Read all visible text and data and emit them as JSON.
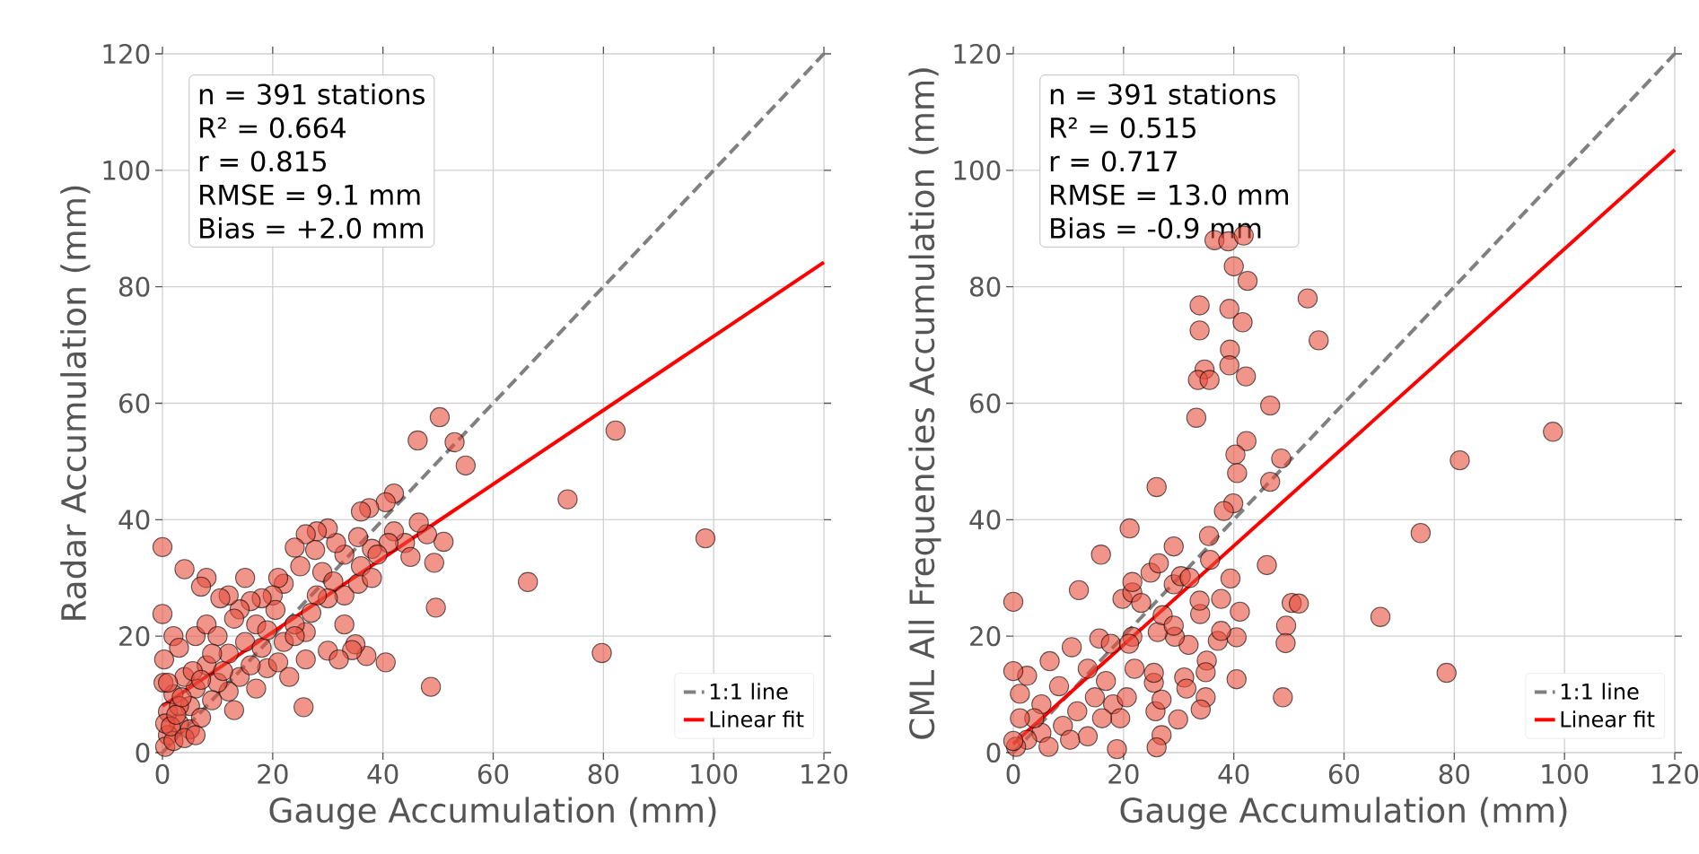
{
  "chart_data": [
    {
      "type": "scatter",
      "xlabel": "Gauge Accumulation (mm)",
      "ylabel": "Radar Accumulation (mm)",
      "xlim": [
        0,
        120
      ],
      "ylim": [
        0,
        120
      ],
      "xticks": [
        0,
        20,
        40,
        60,
        80,
        100,
        120
      ],
      "yticks": [
        0,
        20,
        40,
        60,
        80,
        100,
        120
      ],
      "grid": true,
      "legend": "bottom right",
      "annotations": [
        "n = 391 stations",
        "R² = 0.664",
        "r = 0.815",
        "RMSE = 9.1 mm",
        "Bias = +2.0 mm"
      ],
      "series": [
        {
          "color": "#e74c3c",
          "marker": "circle",
          "x": [
            98.5,
            79.7,
            82.2,
            73.5,
            66.3,
            48.7,
            55,
            53,
            50.3,
            46.3,
            49.6,
            51,
            49.3,
            48,
            46.5,
            40.5,
            37,
            35,
            34.4,
            25.6,
            26,
            30,
            32,
            0,
            0,
            42,
            40.5,
            37.5,
            36,
            44,
            45,
            42,
            41,
            38,
            35.5,
            33,
            31.5,
            30,
            28,
            26,
            27.7,
            24,
            25,
            29,
            31,
            33,
            35.5,
            36,
            30,
            28,
            26,
            24,
            22,
            21,
            20,
            20.5,
            18,
            16,
            14,
            12,
            10.5,
            8,
            7,
            4,
            2,
            3,
            6,
            8,
            10,
            12,
            15,
            17,
            18,
            19,
            21,
            22,
            24,
            23,
            14,
            12,
            13,
            10,
            8,
            6,
            5,
            4,
            3,
            2,
            1,
            1,
            0.5,
            2,
            3,
            5,
            7,
            9,
            11,
            16,
            17,
            19,
            15,
            13,
            9,
            0.3,
            0.2,
            27,
            33,
            38,
            39,
            0.5,
            1.5,
            2.5,
            4,
            6,
            3.5,
            1,
            5.5,
            7
          ],
          "values": [
            36.8,
            17.1,
            55.3,
            43.5,
            29.3,
            11.3,
            49.3,
            53.3,
            57.6,
            53.6,
            24.9,
            36.2,
            32.6,
            37.5,
            39.5,
            15.5,
            16.6,
            18.6,
            17.6,
            7.8,
            16,
            17.5,
            16,
            35.3,
            23.8,
            44.5,
            43,
            42,
            41.4,
            36,
            33.6,
            38,
            36,
            35,
            37,
            34,
            36,
            38.5,
            38,
            37.5,
            34.8,
            35.2,
            32,
            31,
            29.4,
            27,
            29,
            32,
            26.5,
            27,
            20.7,
            22,
            29,
            30,
            27,
            24.5,
            26.5,
            26,
            24.6,
            27,
            26.5,
            30,
            28.5,
            31.5,
            20,
            18,
            20,
            22,
            20,
            17,
            19,
            22,
            18,
            14.5,
            15.5,
            19,
            20,
            13,
            13,
            10.5,
            7.3,
            12,
            15,
            11,
            8,
            13,
            5,
            10,
            7,
            3,
            1,
            2,
            8,
            4,
            6,
            9,
            14,
            15,
            11,
            21,
            30,
            23,
            17,
            16,
            12,
            24,
            22,
            30,
            34,
            5,
            4.5,
            6.5,
            2.5,
            3,
            9.5,
            12,
            14,
            12.5
          ]
        },
        {
          "name": "1:1 line",
          "type": "line",
          "color": "#808080",
          "line_style": "dashed",
          "marker": "none",
          "x": [
            0,
            120
          ],
          "values": [
            0,
            120
          ]
        },
        {
          "name": "Linear fit",
          "type": "line",
          "color": "#ff0000",
          "line_style": "solid",
          "marker": "none",
          "x": [
            0,
            120
          ],
          "values": [
            8.0,
            84.2
          ]
        }
      ]
    },
    {
      "type": "scatter",
      "xlabel": "Gauge Accumulation (mm)",
      "ylabel": "CML All Frequencies Accumulation (mm)",
      "xlim": [
        0,
        120
      ],
      "ylim": [
        0,
        120
      ],
      "xticks": [
        0,
        20,
        40,
        60,
        80,
        100,
        120
      ],
      "yticks": [
        0,
        20,
        40,
        60,
        80,
        100,
        120
      ],
      "grid": true,
      "legend": "bottom right",
      "annotations": [
        "n = 391 stations",
        "R² = 0.515",
        "r = 0.717",
        "RMSE = 13.0 mm",
        "Bias = -0.9 mm"
      ],
      "series": [
        {
          "color": "#e74c3c",
          "marker": "circle",
          "x": [
            53.4,
            55.4,
            33.8,
            39.2,
            41.6,
            33.8,
            39.3,
            39.2,
            34.7,
            33.5,
            35.6,
            42.2,
            46.6,
            33.2,
            42.3,
            40.3,
            48.6,
            40.6,
            46.6,
            26.0,
            39.9,
            38.2,
            81.0,
            73.9,
            66.6,
            78.6,
            48.9,
            21.1,
            15.9,
            29.1,
            35.5,
            35.7,
            46.0,
            39.4,
            50.5,
            51.8,
            49.5,
            49.4,
            41.1,
            37.7,
            40.5,
            37.1,
            37.7,
            35.1,
            34.9,
            40.5,
            34.9,
            34.0,
            29.9,
            26.9,
            26.0,
            18.8,
            31.0,
            31.4,
            25.8,
            26.9,
            25.5,
            25.5,
            11.9,
            0,
            19.8,
            21.6,
            21.6,
            24.9,
            26.4,
            29.1,
            30.4,
            32.0,
            33.9,
            33.8,
            31.8,
            29.3,
            26.2,
            21.6,
            15.6,
            17.7,
            10.6,
            6.6,
            22.0,
            16.8,
            13.5,
            23.2,
            27.1,
            29.1,
            21.0,
            1.2,
            2.5,
            5.1,
            8.3,
            11.6,
            14.8,
            18.1,
            9.0,
            13.5,
            5.1,
            2.5,
            0.5,
            6.4,
            19.4,
            20.6,
            16.1,
            10.3,
            3.8,
            1.2,
            36.5,
            39,
            41.8,
            40,
            42.5,
            97.9,
            0,
            0
          ],
          "values": [
            78.0,
            70.8,
            76.8,
            76.2,
            73.9,
            72.5,
            69.2,
            66.5,
            65.8,
            64.0,
            64.0,
            64.6,
            59.6,
            57.5,
            53.5,
            51.2,
            50.5,
            48.0,
            46.5,
            45.6,
            42.8,
            41.5,
            50.2,
            37.7,
            23.3,
            13.7,
            9.5,
            38.5,
            34.0,
            35.4,
            37.2,
            33.1,
            32.2,
            29.9,
            25.7,
            25.6,
            21.8,
            18.8,
            24.2,
            26.4,
            19.8,
            19.2,
            20.9,
            15.8,
            13.8,
            12.6,
            9.5,
            7.4,
            5.7,
            3.0,
            0.9,
            0.6,
            12.9,
            11.0,
            7.1,
            9.1,
            12.0,
            13.7,
            27.9,
            25.9,
            26.4,
            27.5,
            29.3,
            30.9,
            32.5,
            28.9,
            30.3,
            30.0,
            23.8,
            26.1,
            18.5,
            19.9,
            20.7,
            19.9,
            19.6,
            18.7,
            18.1,
            15.7,
            14.4,
            12.3,
            14.4,
            25.7,
            23.6,
            21.8,
            18.7,
            10.1,
            13.2,
            8.3,
            11.4,
            7.1,
            9.5,
            8.3,
            4.6,
            2.8,
            3.4,
            2.2,
            1.0,
            1.0,
            5.9,
            9.5,
            5.9,
            2.2,
            5.9,
            5.9,
            88,
            87.8,
            88.8,
            83.5,
            81,
            55.1,
            14,
            2
          ]
        },
        {
          "name": "1:1 line",
          "type": "line",
          "color": "#808080",
          "line_style": "dashed",
          "marker": "none",
          "x": [
            0,
            120
          ],
          "values": [
            0,
            120
          ]
        },
        {
          "name": "Linear fit",
          "type": "line",
          "color": "#ff0000",
          "line_style": "solid",
          "marker": "none",
          "x": [
            0,
            120
          ],
          "values": [
            1.5,
            103.5
          ]
        }
      ]
    }
  ]
}
